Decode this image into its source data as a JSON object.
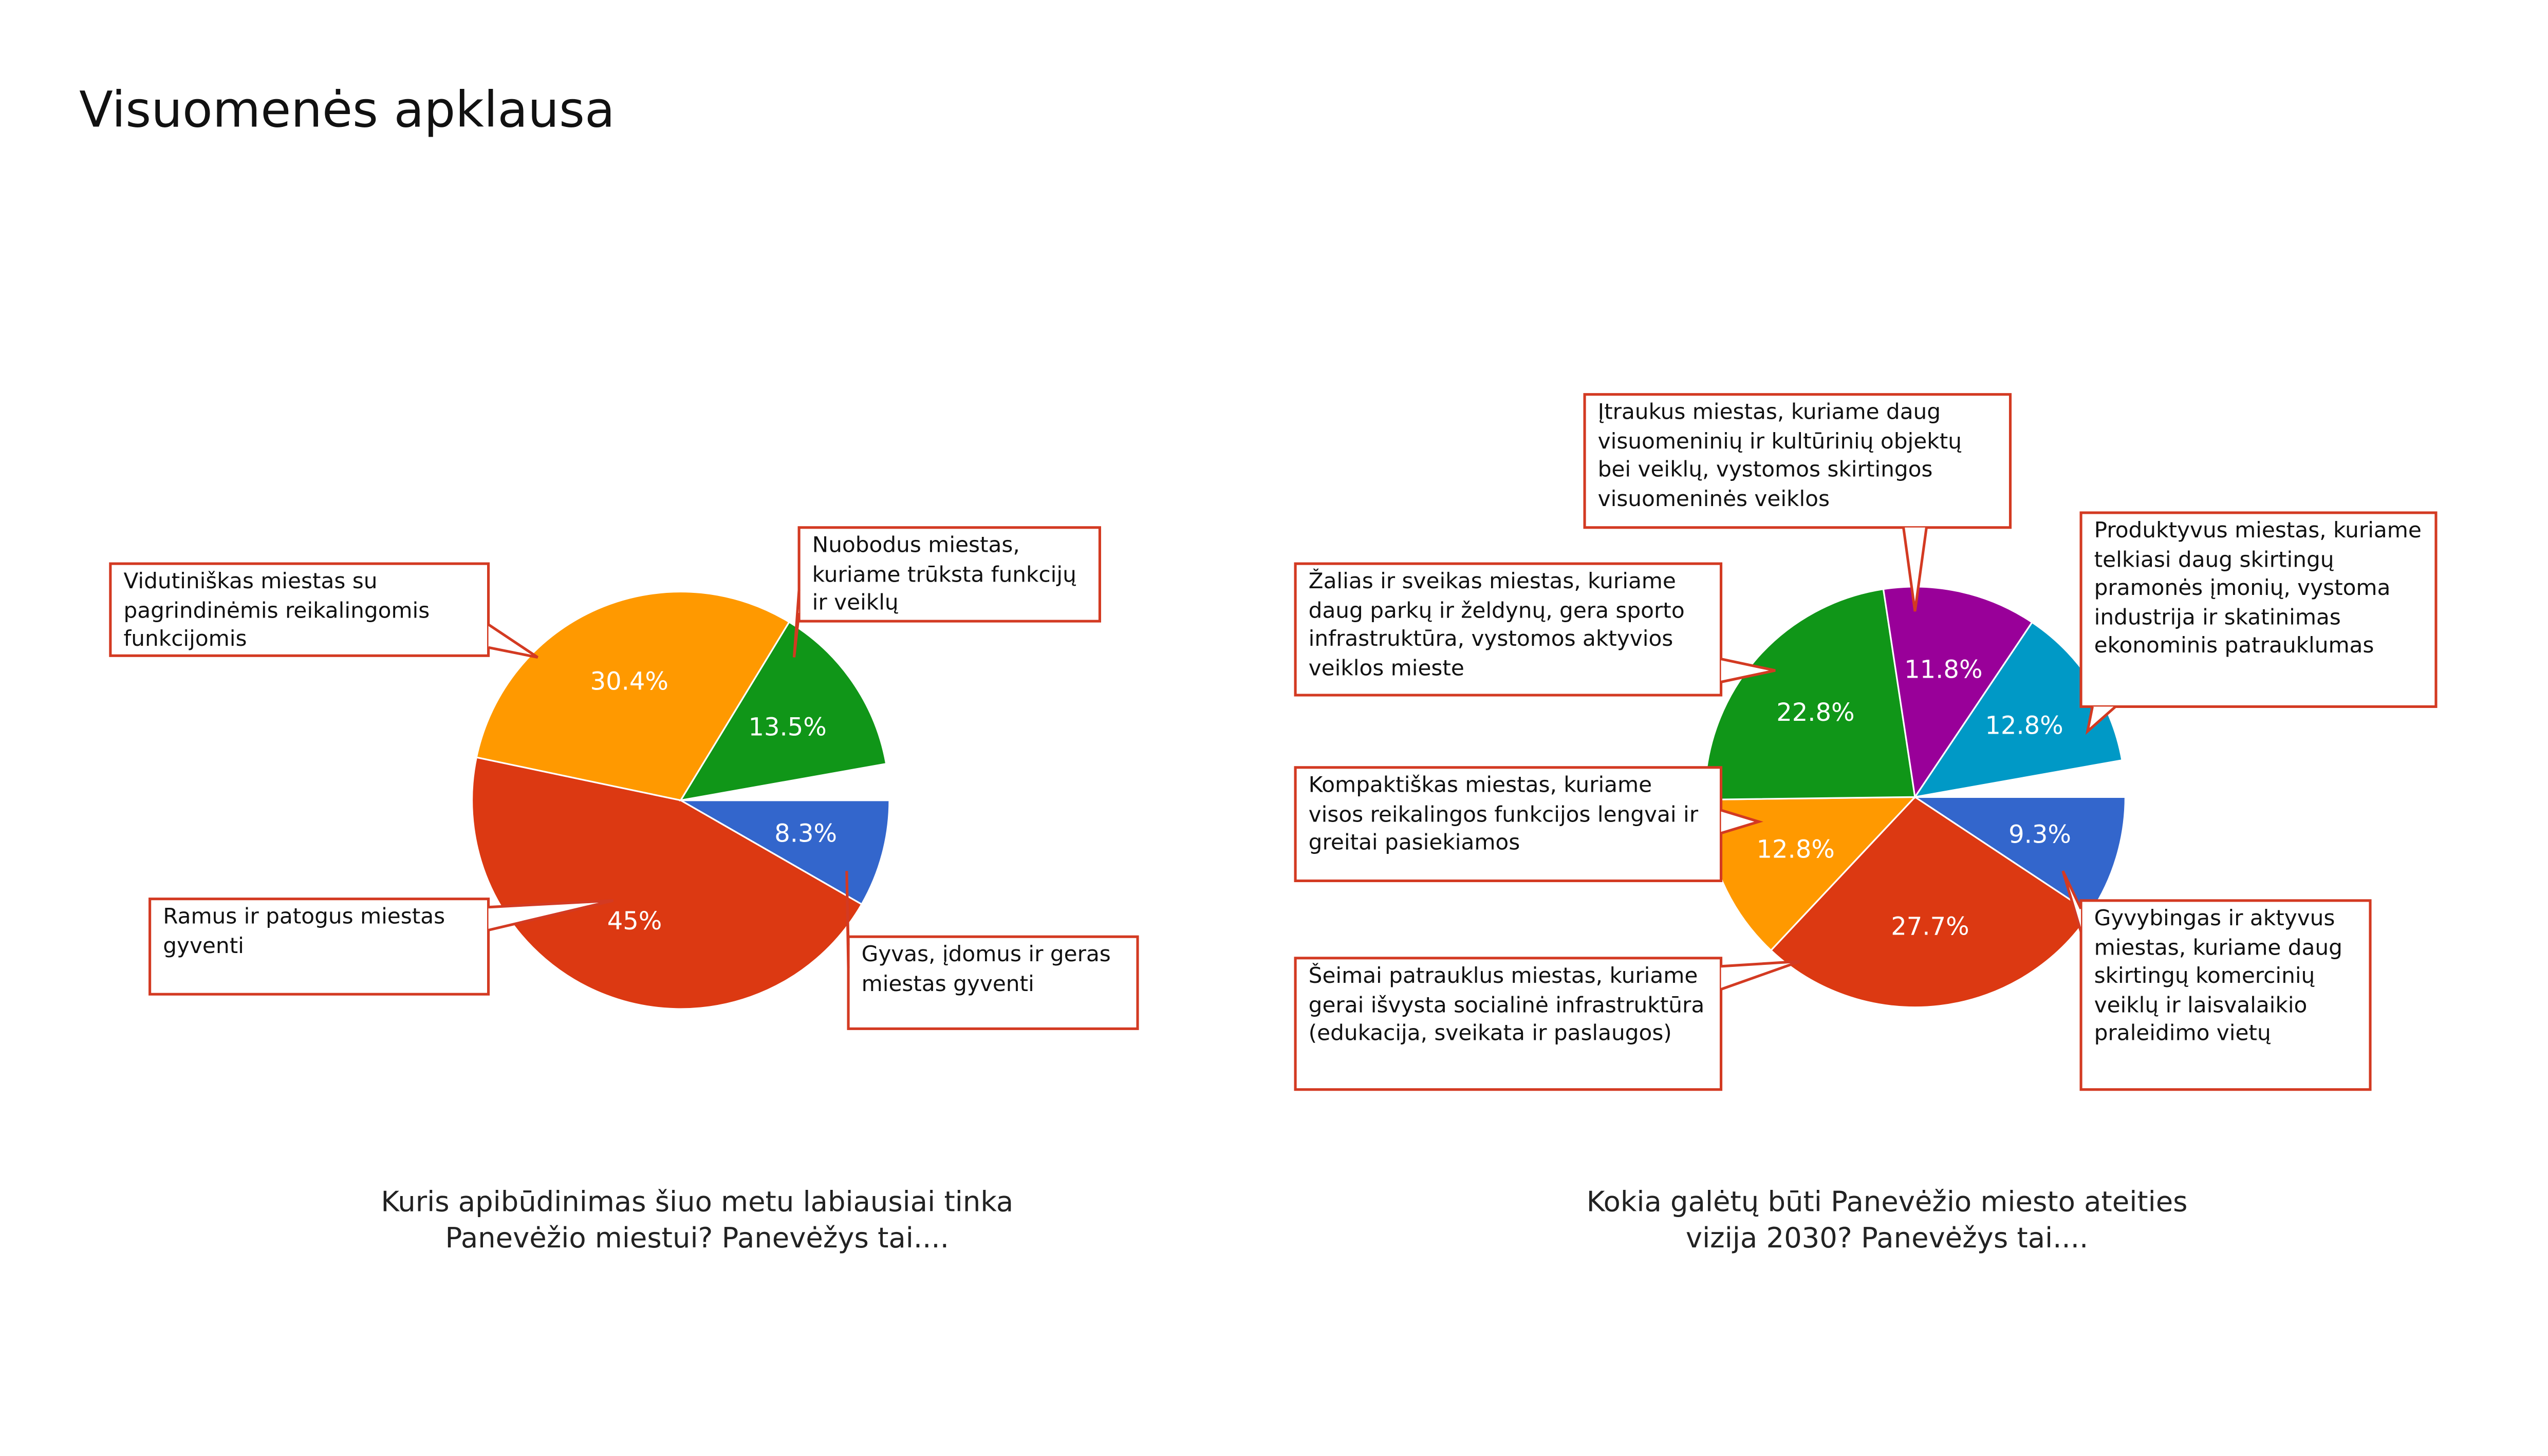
{
  "page_title": "Visuomenės apklausa",
  "chart_data": [
    {
      "type": "pie",
      "caption": [
        "Kuris apibūdinimas šiuo metu labiausiai tinka",
        "Panevėžio miestui? Panevėžys tai...."
      ],
      "categories": [
        "Gyvas, įdomus ir geras miestas gyventi",
        "Ramus ir patogus miestas gyventi",
        "Vidutiniškas miestas su pagrindinėmis reikalingomis funkcijomis",
        "Nuobodus miestas, kuriame trūksta funkcijų ir veiklų"
      ],
      "values": [
        8.3,
        45,
        30.4,
        13.5
      ],
      "value_labels": [
        "8.3%",
        "45%",
        "30.4%",
        "13.5%"
      ],
      "colors": [
        "#3366cc",
        "#dc3912",
        "#ff9900",
        "#109618"
      ]
    },
    {
      "type": "pie",
      "caption": [
        "Kokia galėtų būti Panevėžio miesto ateities",
        "vizija 2030? Panevėžys tai...."
      ],
      "categories": [
        "Gyvybingas ir aktyvus miestas, kuriame daug skirtingų komercinių veiklų ir laisvalaikio praleidimo vietų",
        "Šeimai patrauklus miestas, kuriame gerai išvystа socialinė infrastruktūra (edukacija, sveikata ir paslaugos)",
        "Kompaktiškas miestas, kuriame visos reikalingos funkcijos lengvai ir greitai pasiekiamos",
        "Žalias ir sveikas miestas, kuriame daug parkų ir želdynų, gera sporto infrastruktūra, vystomos aktyvios veiklos mieste",
        "Įtraukus miestas, kuriame daug visuomeninių ir kultūrinių objektų bei veiklų, vystomos skirtingos visuomeninės veiklos",
        "Produktyvus miestas, kuriame telkiasi daug skirtingų pramonės įmonių, vystoma industrija ir skatinimas ekonominis patrauklumas"
      ],
      "values": [
        9.3,
        27.7,
        12.8,
        22.8,
        11.8,
        12.8
      ],
      "value_labels": [
        "9.3%",
        "27.7%",
        "12.8%",
        "22.8%",
        "11.8%",
        "12.8%"
      ],
      "colors": [
        "#3366cc",
        "#dc3912",
        "#ff9900",
        "#109618",
        "#990099",
        "#0099c6"
      ]
    }
  ]
}
